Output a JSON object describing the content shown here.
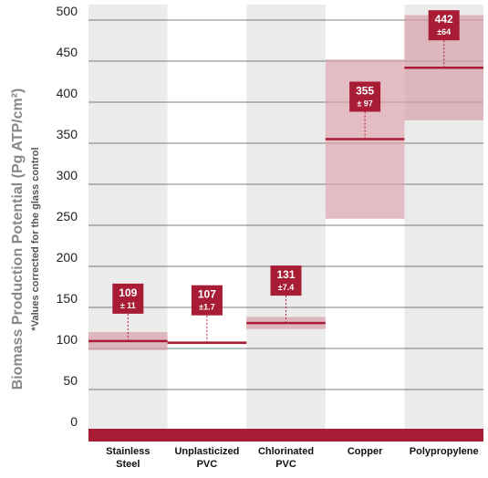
{
  "chart_data": {
    "type": "range-box",
    "y_label": "Biomass Production Potential (Pg ATP/cm²)",
    "y_note": "*Values corrected for the glass control",
    "categories": [
      "Stainless Steel",
      "Unplasticized PVC",
      "Chlorinated PVC",
      "Copper",
      "Polypropylene"
    ],
    "values": [
      109,
      107,
      131,
      355,
      442
    ],
    "errors": [
      11,
      1.7,
      7.4,
      97,
      64
    ],
    "error_labels": [
      "± 11",
      "±1.7",
      "±7.4",
      "± 97",
      "±64"
    ],
    "color": "#a81c35",
    "band_color": "#d9a0aa",
    "ylim": [
      0,
      510
    ],
    "yticks": [
      0,
      50,
      100,
      150,
      200,
      250,
      300,
      350,
      400,
      450,
      500
    ],
    "grid": true
  }
}
